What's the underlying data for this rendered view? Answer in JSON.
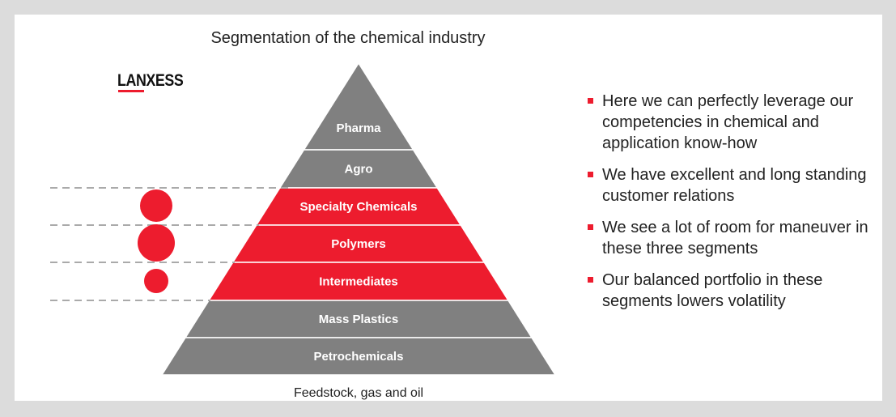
{
  "title": "Segmentation of the chemical industry",
  "logo": "LANXESS",
  "layers": [
    {
      "label": "Pharma",
      "color": "#808080"
    },
    {
      "label": "Agro",
      "color": "#808080"
    },
    {
      "label": "Specialty Chemicals",
      "color": "#ed1c2e"
    },
    {
      "label": "Polymers",
      "color": "#ed1c2e"
    },
    {
      "label": "Intermediates",
      "color": "#ed1c2e"
    },
    {
      "label": "Mass Plastics",
      "color": "#808080"
    },
    {
      "label": "Petrochemicals",
      "color": "#808080"
    }
  ],
  "base_label": "Feedstock, gas and oil",
  "bullets": [
    "Here we can perfectly leverage our competencies in chemical and application know-how",
    "We have excellent and long standing customer relations",
    "We see a lot of room for maneuver in these three segments",
    "Our balanced portfolio in these segments lowers volatility"
  ]
}
